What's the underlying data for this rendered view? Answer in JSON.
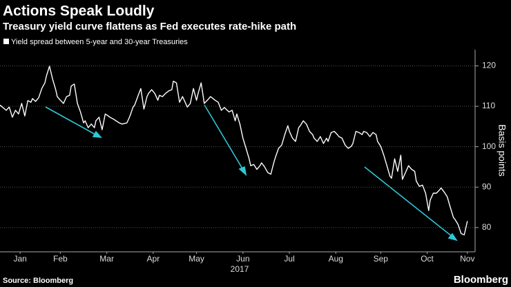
{
  "chart_data": {
    "type": "line",
    "title": "Actions Speak Loudly",
    "subtitle": "Treasury yield curve flattens as Fed executes rate-hike path",
    "y_label": "Basis points",
    "x_label": "2017",
    "source": "Source: Bloomberg",
    "brand": "Bloomberg",
    "grid": true,
    "xlim": [
      3,
      310
    ],
    "ylim": [
      74,
      124
    ],
    "yticks": [
      80,
      90,
      100,
      110,
      120
    ],
    "xticks": [
      {
        "value": 16,
        "label": "Jan"
      },
      {
        "value": 42,
        "label": "Feb"
      },
      {
        "value": 72,
        "label": "Mar"
      },
      {
        "value": 102,
        "label": "Apr"
      },
      {
        "value": 130,
        "label": "May"
      },
      {
        "value": 160,
        "label": "Jun"
      },
      {
        "value": 190,
        "label": "Jul"
      },
      {
        "value": 220,
        "label": "Aug"
      },
      {
        "value": 249,
        "label": "Sep"
      },
      {
        "value": 279,
        "label": "Oct"
      },
      {
        "value": 305,
        "label": "Nov"
      }
    ],
    "x": [
      3,
      7,
      9,
      11,
      13,
      15,
      17,
      19,
      21,
      23,
      24,
      26,
      28,
      30,
      32,
      33,
      35,
      37,
      39,
      40,
      42,
      44,
      46,
      48,
      49,
      51,
      53,
      55,
      57,
      58,
      60,
      62,
      64,
      65,
      67,
      69,
      71,
      73,
      74,
      76,
      78,
      80,
      82,
      85,
      87,
      89,
      90,
      92,
      94,
      96,
      98,
      99,
      101,
      103,
      105,
      106,
      108,
      110,
      112,
      114,
      115,
      117,
      119,
      121,
      123,
      124,
      126,
      128,
      130,
      131,
      133,
      135,
      137,
      139,
      140,
      142,
      144,
      146,
      148,
      149,
      151,
      153,
      155,
      156,
      158,
      160,
      162,
      164,
      165,
      167,
      169,
      171,
      172,
      174,
      176,
      178,
      180,
      181,
      183,
      185,
      187,
      189,
      190,
      192,
      194,
      196,
      197,
      199,
      201,
      203,
      205,
      206,
      208,
      210,
      212,
      214,
      215,
      217,
      219,
      221,
      222,
      224,
      226,
      228,
      230,
      231,
      233,
      235,
      237,
      238,
      240,
      242,
      244,
      246,
      247,
      249,
      251,
      253,
      255,
      256,
      258,
      260,
      262,
      263,
      265,
      267,
      269,
      271,
      272,
      274,
      276,
      278,
      280,
      281,
      283,
      285,
      287,
      288,
      290,
      292,
      294,
      296,
      297,
      299,
      301,
      303,
      305
    ],
    "series": [
      {
        "name": "Yield spread between 5-year and 30-year Treasuries",
        "color": "#ffffff",
        "values": [
          110.3,
          109,
          109.8,
          107.3,
          109,
          108.1,
          110.7,
          107.6,
          111.4,
          111,
          111.9,
          111.2,
          112.1,
          114.4,
          115.8,
          117.5,
          119.9,
          116.7,
          114.1,
          112.4,
          111.5,
          110.7,
          112.4,
          112.7,
          115,
          115.5,
          110.7,
          108.6,
          105.9,
          106.4,
          104.7,
          105.6,
          104.7,
          106.4,
          107.3,
          104.2,
          108.1,
          107.6,
          107.3,
          106.9,
          106.4,
          105.9,
          105.6,
          105.9,
          107.6,
          109.8,
          110.3,
          112.4,
          114.4,
          109.3,
          112.4,
          113.2,
          114.1,
          113.2,
          111.5,
          112.7,
          112.4,
          113.2,
          113.8,
          114.1,
          116.2,
          115.8,
          111,
          112.4,
          110.7,
          109.8,
          110.7,
          114.4,
          111.5,
          113.2,
          115.8,
          110.7,
          111.5,
          112.4,
          112.1,
          111.5,
          111,
          109,
          109.7,
          109.3,
          108.6,
          109,
          106.4,
          108.1,
          105.6,
          102.1,
          99.6,
          97,
          95.3,
          95.6,
          94.4,
          95.3,
          96,
          95,
          93.6,
          93.2,
          96.2,
          97.4,
          99.6,
          100.4,
          103,
          105.2,
          103.8,
          102.1,
          101.3,
          104.7,
          105.2,
          106.4,
          105.6,
          103.8,
          103,
          102.1,
          101.3,
          102.5,
          100.8,
          102.1,
          101.3,
          103.5,
          103.8,
          103,
          102.5,
          102.1,
          100.4,
          99.6,
          100.1,
          100.8,
          103.8,
          103.5,
          103,
          103.8,
          103.5,
          102.5,
          103.5,
          103,
          101.3,
          100.1,
          97.9,
          95.3,
          92.7,
          92.2,
          97,
          93.9,
          97.9,
          91.9,
          93.6,
          95.3,
          94.4,
          93.9,
          91.5,
          90.2,
          90.5,
          88.5,
          84.2,
          86.8,
          88.5,
          88.5,
          89.3,
          89.8,
          88.8,
          87.6,
          85,
          82.5,
          82,
          80.8,
          78.5,
          78.2,
          81.6
        ]
      }
    ]
  }
}
